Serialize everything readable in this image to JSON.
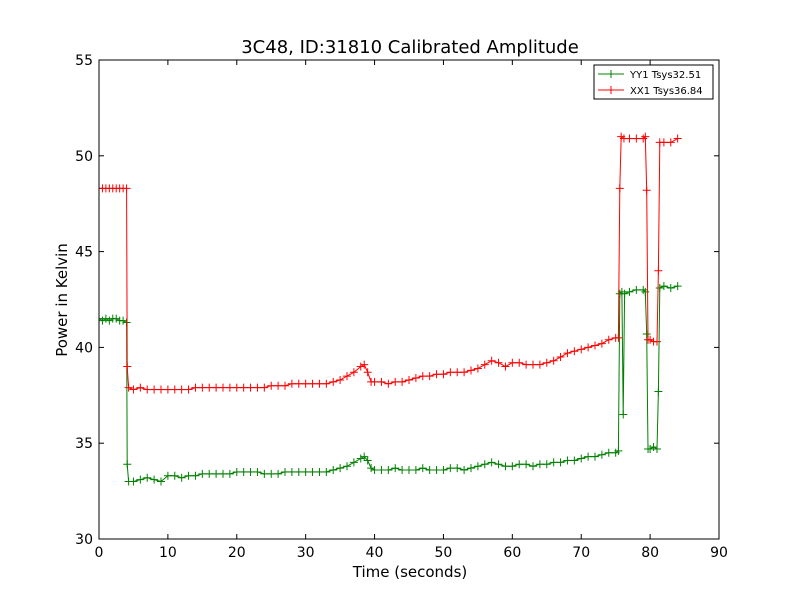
{
  "chart_data": {
    "type": "line",
    "title": "3C48, ID:31810 Calibrated Amplitude",
    "xlabel": "Time (seconds)",
    "ylabel": "Power in Kelvin",
    "xlim": [
      0,
      90
    ],
    "ylim": [
      30,
      55
    ],
    "xticks": [
      0,
      10,
      20,
      30,
      40,
      50,
      60,
      70,
      80,
      90
    ],
    "yticks": [
      30,
      35,
      40,
      45,
      50,
      55
    ],
    "grid": false,
    "legend_position": "top-right",
    "marker": "plus",
    "series": [
      {
        "name": "YY1 Tsys32.51",
        "color": "#008000",
        "points": [
          [
            0.0,
            41.5
          ],
          [
            0.5,
            41.4
          ],
          [
            1.0,
            41.5
          ],
          [
            1.5,
            41.4
          ],
          [
            2.0,
            41.5
          ],
          [
            2.5,
            41.5
          ],
          [
            3.0,
            41.4
          ],
          [
            3.5,
            41.4
          ],
          [
            4.0,
            41.3
          ],
          [
            4.1,
            33.9
          ],
          [
            4.3,
            33.0
          ],
          [
            5.0,
            33.0
          ],
          [
            6.0,
            33.1
          ],
          [
            7.0,
            33.2
          ],
          [
            8.0,
            33.1
          ],
          [
            9.0,
            33.0
          ],
          [
            10.0,
            33.3
          ],
          [
            11.0,
            33.3
          ],
          [
            12.0,
            33.2
          ],
          [
            13.0,
            33.3
          ],
          [
            14.0,
            33.3
          ],
          [
            15.0,
            33.4
          ],
          [
            16.0,
            33.4
          ],
          [
            17.0,
            33.4
          ],
          [
            18.0,
            33.4
          ],
          [
            19.0,
            33.4
          ],
          [
            20.0,
            33.5
          ],
          [
            21.0,
            33.5
          ],
          [
            22.0,
            33.5
          ],
          [
            23.0,
            33.5
          ],
          [
            24.0,
            33.4
          ],
          [
            25.0,
            33.4
          ],
          [
            26.0,
            33.4
          ],
          [
            27.0,
            33.5
          ],
          [
            28.0,
            33.5
          ],
          [
            29.0,
            33.5
          ],
          [
            30.0,
            33.5
          ],
          [
            31.0,
            33.5
          ],
          [
            32.0,
            33.5
          ],
          [
            33.0,
            33.5
          ],
          [
            34.0,
            33.6
          ],
          [
            35.0,
            33.7
          ],
          [
            36.0,
            33.8
          ],
          [
            37.0,
            34.0
          ],
          [
            38.0,
            34.2
          ],
          [
            38.5,
            34.3
          ],
          [
            39.0,
            34.1
          ],
          [
            39.5,
            33.7
          ],
          [
            40.0,
            33.6
          ],
          [
            41.0,
            33.6
          ],
          [
            42.0,
            33.6
          ],
          [
            43.0,
            33.7
          ],
          [
            44.0,
            33.6
          ],
          [
            45.0,
            33.6
          ],
          [
            46.0,
            33.6
          ],
          [
            47.0,
            33.7
          ],
          [
            48.0,
            33.6
          ],
          [
            49.0,
            33.6
          ],
          [
            50.0,
            33.6
          ],
          [
            51.0,
            33.7
          ],
          [
            52.0,
            33.7
          ],
          [
            53.0,
            33.6
          ],
          [
            54.0,
            33.7
          ],
          [
            55.0,
            33.8
          ],
          [
            56.0,
            33.9
          ],
          [
            57.0,
            34.0
          ],
          [
            58.0,
            33.9
          ],
          [
            59.0,
            33.8
          ],
          [
            60.0,
            33.8
          ],
          [
            61.0,
            33.9
          ],
          [
            62.0,
            33.9
          ],
          [
            63.0,
            33.8
          ],
          [
            64.0,
            33.9
          ],
          [
            65.0,
            33.9
          ],
          [
            66.0,
            34.0
          ],
          [
            67.0,
            34.0
          ],
          [
            68.0,
            34.1
          ],
          [
            69.0,
            34.1
          ],
          [
            70.0,
            34.2
          ],
          [
            71.0,
            34.3
          ],
          [
            72.0,
            34.3
          ],
          [
            73.0,
            34.4
          ],
          [
            74.0,
            34.5
          ],
          [
            75.0,
            34.5
          ],
          [
            75.4,
            34.6
          ],
          [
            75.6,
            42.8
          ],
          [
            75.9,
            42.9
          ],
          [
            76.1,
            36.5
          ],
          [
            76.3,
            42.8
          ],
          [
            77.0,
            42.9
          ],
          [
            78.0,
            43.0
          ],
          [
            79.0,
            43.0
          ],
          [
            79.3,
            42.9
          ],
          [
            79.5,
            40.7
          ],
          [
            79.7,
            34.7
          ],
          [
            80.0,
            34.7
          ],
          [
            80.5,
            34.8
          ],
          [
            81.0,
            34.7
          ],
          [
            81.2,
            37.7
          ],
          [
            81.4,
            43.1
          ],
          [
            82.0,
            43.2
          ],
          [
            83.0,
            43.1
          ],
          [
            84.0,
            43.2
          ]
        ]
      },
      {
        "name": "XX1 Tsys36.84",
        "color": "#ff0000",
        "points": [
          [
            0.0,
            48.3
          ],
          [
            0.5,
            48.3
          ],
          [
            1.0,
            48.3
          ],
          [
            1.5,
            48.3
          ],
          [
            2.0,
            48.3
          ],
          [
            2.5,
            48.3
          ],
          [
            3.0,
            48.3
          ],
          [
            3.5,
            48.3
          ],
          [
            4.0,
            48.3
          ],
          [
            4.1,
            39.0
          ],
          [
            4.3,
            37.9
          ],
          [
            5.0,
            37.8
          ],
          [
            6.0,
            37.9
          ],
          [
            7.0,
            37.8
          ],
          [
            8.0,
            37.8
          ],
          [
            9.0,
            37.8
          ],
          [
            10.0,
            37.8
          ],
          [
            11.0,
            37.8
          ],
          [
            12.0,
            37.8
          ],
          [
            13.0,
            37.8
          ],
          [
            14.0,
            37.9
          ],
          [
            15.0,
            37.9
          ],
          [
            16.0,
            37.9
          ],
          [
            17.0,
            37.9
          ],
          [
            18.0,
            37.9
          ],
          [
            19.0,
            37.9
          ],
          [
            20.0,
            37.9
          ],
          [
            21.0,
            37.9
          ],
          [
            22.0,
            37.9
          ],
          [
            23.0,
            37.9
          ],
          [
            24.0,
            37.9
          ],
          [
            25.0,
            38.0
          ],
          [
            26.0,
            38.0
          ],
          [
            27.0,
            38.0
          ],
          [
            28.0,
            38.1
          ],
          [
            29.0,
            38.1
          ],
          [
            30.0,
            38.1
          ],
          [
            31.0,
            38.1
          ],
          [
            32.0,
            38.1
          ],
          [
            33.0,
            38.1
          ],
          [
            34.0,
            38.2
          ],
          [
            35.0,
            38.3
          ],
          [
            36.0,
            38.5
          ],
          [
            37.0,
            38.7
          ],
          [
            38.0,
            39.0
          ],
          [
            38.5,
            39.1
          ],
          [
            39.0,
            38.7
          ],
          [
            39.5,
            38.2
          ],
          [
            40.0,
            38.2
          ],
          [
            41.0,
            38.2
          ],
          [
            42.0,
            38.1
          ],
          [
            43.0,
            38.2
          ],
          [
            44.0,
            38.2
          ],
          [
            45.0,
            38.3
          ],
          [
            46.0,
            38.4
          ],
          [
            47.0,
            38.5
          ],
          [
            48.0,
            38.5
          ],
          [
            49.0,
            38.6
          ],
          [
            50.0,
            38.6
          ],
          [
            51.0,
            38.7
          ],
          [
            52.0,
            38.7
          ],
          [
            53.0,
            38.7
          ],
          [
            54.0,
            38.8
          ],
          [
            55.0,
            38.9
          ],
          [
            56.0,
            39.1
          ],
          [
            57.0,
            39.3
          ],
          [
            58.0,
            39.2
          ],
          [
            59.0,
            39.0
          ],
          [
            60.0,
            39.2
          ],
          [
            61.0,
            39.2
          ],
          [
            62.0,
            39.1
          ],
          [
            63.0,
            39.1
          ],
          [
            64.0,
            39.1
          ],
          [
            65.0,
            39.2
          ],
          [
            66.0,
            39.3
          ],
          [
            67.0,
            39.5
          ],
          [
            68.0,
            39.7
          ],
          [
            69.0,
            39.8
          ],
          [
            70.0,
            39.9
          ],
          [
            71.0,
            40.0
          ],
          [
            72.0,
            40.1
          ],
          [
            73.0,
            40.2
          ],
          [
            74.0,
            40.4
          ],
          [
            75.0,
            40.5
          ],
          [
            75.4,
            40.5
          ],
          [
            75.6,
            48.3
          ],
          [
            75.8,
            51.0
          ],
          [
            76.2,
            50.9
          ],
          [
            77.0,
            50.9
          ],
          [
            78.0,
            50.9
          ],
          [
            79.0,
            50.9
          ],
          [
            79.3,
            51.0
          ],
          [
            79.5,
            48.2
          ],
          [
            79.7,
            40.4
          ],
          [
            80.0,
            40.4
          ],
          [
            80.5,
            40.3
          ],
          [
            81.0,
            40.3
          ],
          [
            81.2,
            44.0
          ],
          [
            81.4,
            50.7
          ],
          [
            82.0,
            50.7
          ],
          [
            83.0,
            50.7
          ],
          [
            84.0,
            50.9
          ]
        ]
      }
    ]
  }
}
